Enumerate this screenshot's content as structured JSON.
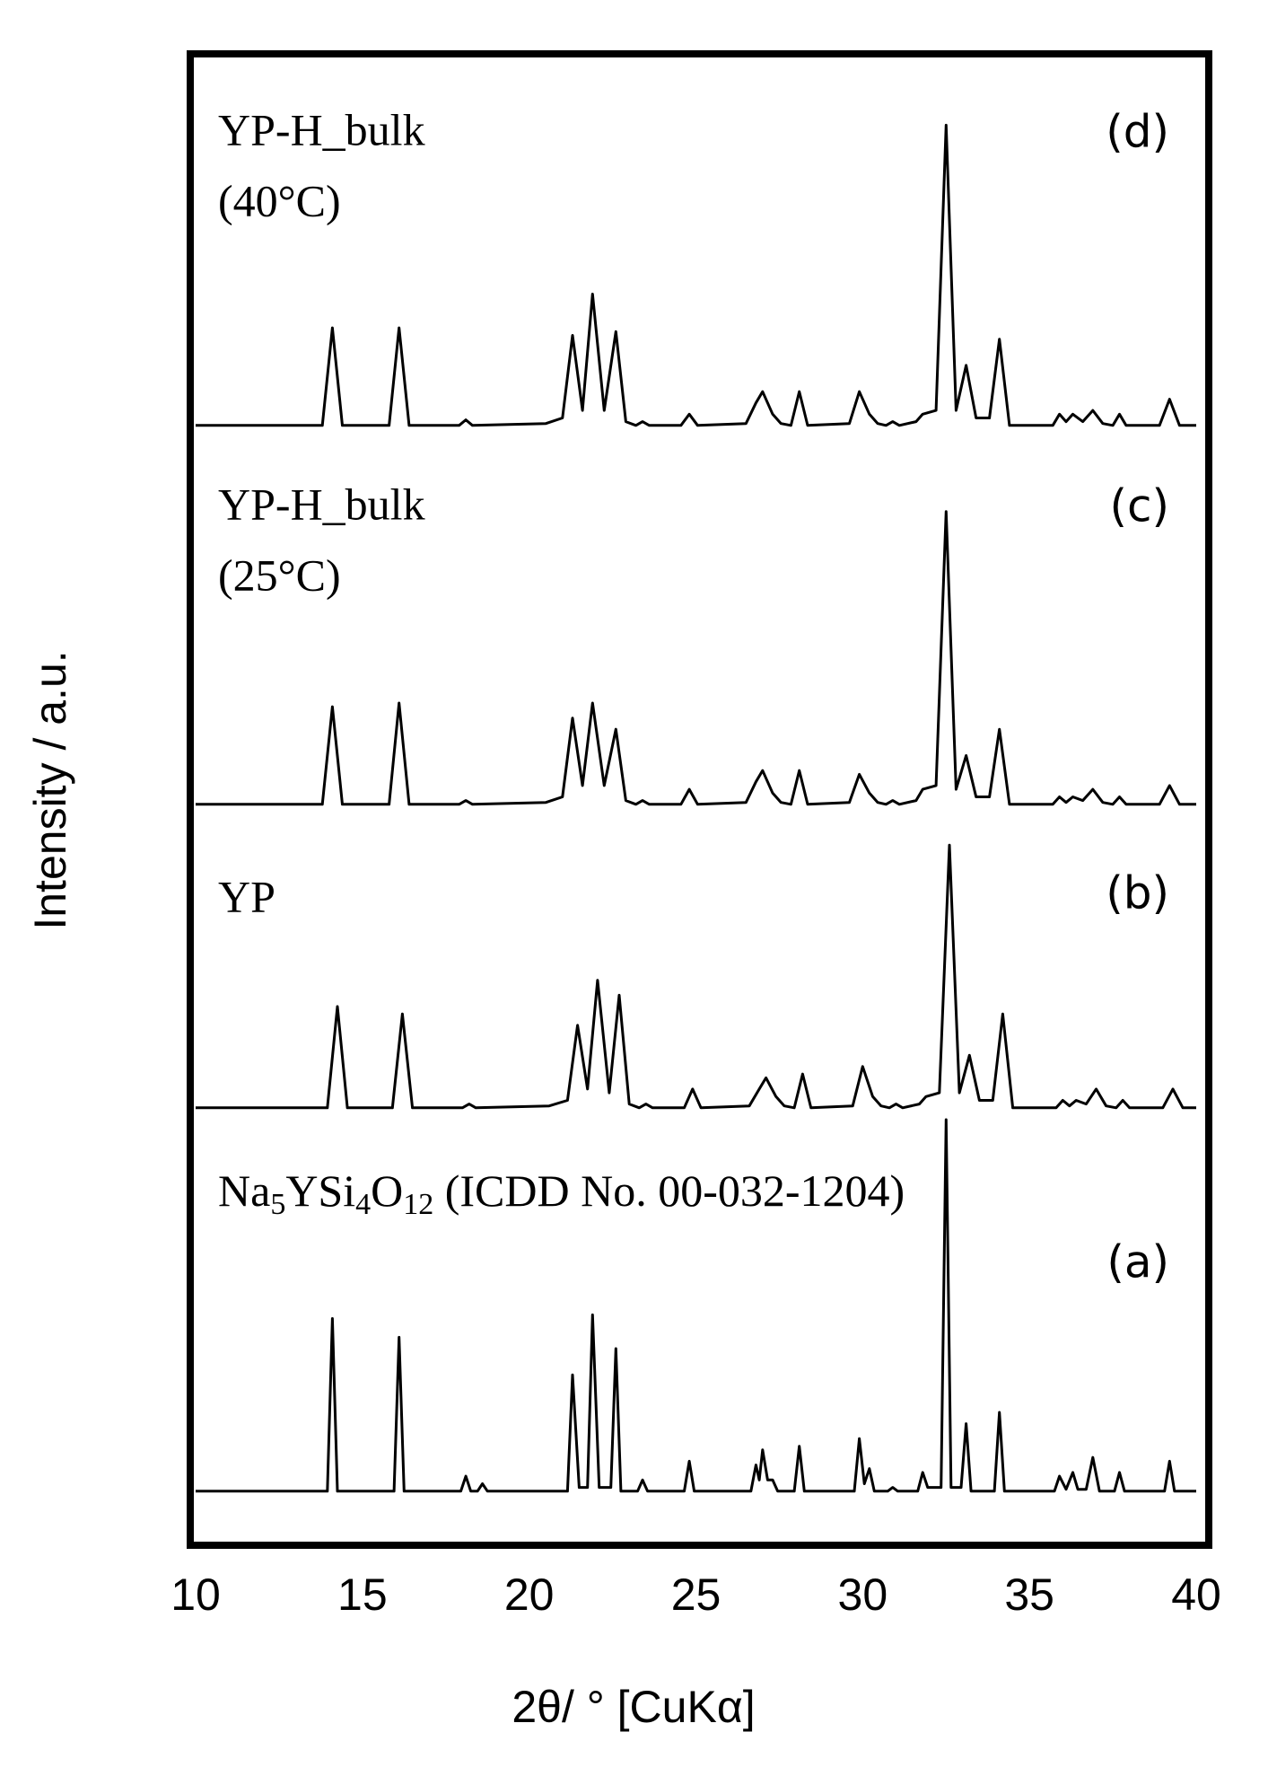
{
  "chart_data": {
    "type": "line",
    "x_label": "2θ/ ° [CuKα]",
    "y_label": "Intensity / a.u.",
    "xlim": [
      10,
      40
    ],
    "xticks": [
      10,
      15,
      20,
      25,
      30,
      35,
      40
    ],
    "series": [
      {
        "label_parts": [
          {
            "text": "YP-H_bulk"
          },
          {
            "text": "(40°C)"
          }
        ],
        "tag": "(d)",
        "color": "#000000",
        "x": [
          10,
          13.8,
          14.1,
          14.4,
          15.8,
          16.1,
          16.4,
          17.9,
          18.1,
          18.3,
          20.5,
          21.0,
          21.3,
          21.6,
          21.9,
          22.25,
          22.6,
          22.9,
          23.2,
          23.4,
          23.6,
          24.55,
          24.8,
          25.05,
          26.5,
          26.8,
          27.0,
          27.3,
          27.55,
          27.85,
          28.1,
          28.35,
          29.6,
          29.9,
          30.2,
          30.45,
          30.7,
          30.9,
          31.1,
          31.6,
          31.8,
          32.2,
          32.5,
          32.8,
          33.1,
          33.4,
          33.8,
          34.1,
          34.4,
          35.7,
          35.9,
          36.1,
          36.3,
          36.6,
          36.9,
          37.2,
          37.5,
          37.7,
          37.9,
          38.9,
          39.2,
          39.5,
          40
        ],
        "values": [
          1,
          1,
          27,
          1,
          1,
          27,
          1,
          1,
          2.5,
          1,
          1.5,
          3,
          25,
          5,
          36,
          5,
          26,
          2,
          1,
          2,
          1,
          1,
          4,
          1,
          1.5,
          7,
          10,
          4,
          1.5,
          1,
          10,
          1,
          1.5,
          10,
          4,
          1.5,
          1,
          2,
          1,
          2,
          4,
          5,
          81,
          5,
          17,
          3,
          3,
          24,
          1,
          1,
          4,
          2,
          4,
          2,
          5,
          1.5,
          1,
          4,
          1,
          1,
          8,
          1,
          1
        ]
      },
      {
        "label_parts": [
          {
            "text": "YP-H_bulk"
          },
          {
            "text": "(25°C)"
          }
        ],
        "tag": "(c)",
        "color": "#000000",
        "x": [
          10,
          13.8,
          14.1,
          14.4,
          15.8,
          16.1,
          16.4,
          17.9,
          18.1,
          18.3,
          20.5,
          21.0,
          21.3,
          21.6,
          21.9,
          22.25,
          22.6,
          22.9,
          23.2,
          23.4,
          23.6,
          24.55,
          24.8,
          25.05,
          26.5,
          26.8,
          27.0,
          27.3,
          27.55,
          27.85,
          28.1,
          28.35,
          29.6,
          29.9,
          30.2,
          30.45,
          30.7,
          30.9,
          31.1,
          31.6,
          31.8,
          32.2,
          32.5,
          32.8,
          33.1,
          33.4,
          33.8,
          34.1,
          34.4,
          35.7,
          35.9,
          36.1,
          36.3,
          36.6,
          36.9,
          37.2,
          37.5,
          37.7,
          37.9,
          38.9,
          39.2,
          39.5,
          40
        ],
        "values": [
          1,
          1,
          27,
          1,
          1,
          28,
          1,
          1,
          2,
          1,
          1.5,
          3,
          24,
          6,
          28,
          6,
          21,
          2,
          1,
          2,
          1,
          1,
          5,
          1,
          1.5,
          7,
          10,
          4,
          1.5,
          1,
          10,
          1,
          1.5,
          9,
          4,
          1.5,
          1,
          2,
          1,
          2,
          5,
          6,
          79,
          5,
          14,
          3,
          3,
          21,
          1,
          1,
          3,
          1.5,
          3,
          2,
          5,
          1.5,
          1,
          3,
          1,
          1,
          6,
          1,
          1
        ]
      },
      {
        "label_parts": [
          {
            "text": "YP"
          }
        ],
        "tag": "(b)",
        "color": "#000000",
        "x": [
          10,
          13.95,
          14.25,
          14.55,
          15.9,
          16.2,
          16.5,
          18.0,
          18.2,
          18.4,
          20.6,
          21.15,
          21.45,
          21.75,
          22.05,
          22.4,
          22.7,
          23.0,
          23.3,
          23.5,
          23.7,
          24.65,
          24.9,
          25.15,
          26.6,
          26.9,
          27.1,
          27.4,
          27.65,
          27.95,
          28.2,
          28.45,
          29.7,
          30.0,
          30.3,
          30.55,
          30.8,
          31.0,
          31.2,
          31.7,
          31.9,
          32.3,
          32.6,
          32.9,
          33.2,
          33.5,
          33.9,
          34.2,
          34.5,
          35.8,
          36.0,
          36.2,
          36.4,
          36.7,
          37.0,
          37.3,
          37.6,
          37.8,
          38.0,
          39.0,
          39.3,
          39.6,
          40
        ],
        "values": [
          1,
          1,
          28,
          1,
          1,
          26,
          1,
          1,
          2,
          1,
          1.5,
          3,
          23,
          6,
          35,
          5,
          31,
          2,
          1,
          2,
          1,
          1,
          6,
          1,
          1.5,
          6,
          9,
          4,
          1.5,
          1,
          10,
          1,
          1.5,
          12,
          4,
          1.5,
          1,
          2,
          1,
          2,
          4,
          5,
          71,
          5,
          15,
          3,
          3,
          26,
          1,
          1,
          3,
          1.5,
          3,
          2,
          6,
          1.5,
          1,
          3,
          1,
          1,
          6,
          1,
          1
        ]
      },
      {
        "label_parts": [
          {
            "text": "Na"
          },
          {
            "text": "5",
            "sub": true
          },
          {
            "text": "YSi"
          },
          {
            "text": "4",
            "sub": true
          },
          {
            "text": "O"
          },
          {
            "text": "12",
            "sub": true
          },
          {
            "text": " (ICDD No. 00-032-1204)"
          }
        ],
        "tag": "(a)",
        "color": "#000000",
        "x": [
          10,
          13.95,
          14.1,
          14.25,
          15.95,
          16.1,
          16.25,
          17.95,
          18.1,
          18.25,
          18.45,
          18.6,
          18.75,
          21.15,
          21.3,
          21.5,
          21.75,
          21.9,
          22.1,
          22.45,
          22.6,
          22.75,
          23.25,
          23.4,
          23.55,
          24.65,
          24.8,
          24.95,
          26.65,
          26.8,
          26.9,
          27.0,
          27.15,
          27.3,
          27.45,
          27.95,
          28.1,
          28.25,
          29.75,
          29.9,
          30.05,
          30.2,
          30.35,
          30.75,
          30.9,
          31.05,
          31.65,
          31.8,
          31.95,
          32.35,
          32.5,
          32.65,
          32.95,
          33.1,
          33.25,
          33.95,
          34.1,
          34.25,
          35.75,
          35.9,
          36.1,
          36.3,
          36.45,
          36.7,
          36.9,
          37.1,
          37.55,
          37.7,
          37.85,
          39.05,
          39.2,
          39.35,
          40
        ],
        "values": [
          1,
          1,
          47,
          1,
          1,
          42,
          1,
          1,
          5,
          1,
          1,
          3,
          1,
          1,
          32,
          2,
          2,
          48,
          2,
          2,
          39,
          1,
          1,
          4,
          1,
          1,
          9,
          1,
          1,
          8,
          4,
          12,
          4,
          4,
          1,
          1,
          13,
          1,
          1,
          15,
          3,
          7,
          1,
          1,
          2,
          1,
          1,
          6,
          2,
          2,
          100,
          2,
          2,
          19,
          1,
          1,
          22,
          1,
          1,
          5,
          1.5,
          6,
          1.5,
          1.5,
          10,
          1,
          1,
          6,
          1,
          1,
          9,
          1,
          1
        ]
      }
    ]
  }
}
